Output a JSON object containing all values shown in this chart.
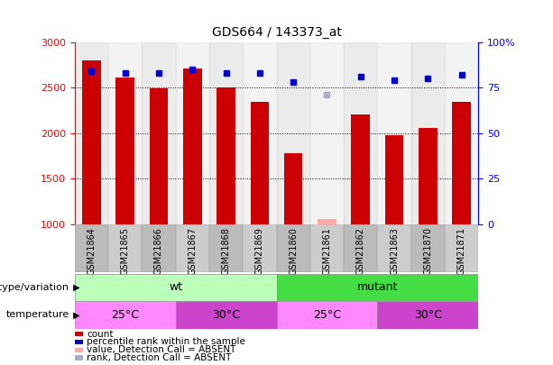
{
  "title": "GDS664 / 143373_at",
  "samples": [
    "GSM21864",
    "GSM21865",
    "GSM21866",
    "GSM21867",
    "GSM21868",
    "GSM21869",
    "GSM21860",
    "GSM21861",
    "GSM21862",
    "GSM21863",
    "GSM21870",
    "GSM21871"
  ],
  "counts": [
    2800,
    2610,
    2490,
    2710,
    2500,
    2340,
    1780,
    null,
    2210,
    1980,
    2060,
    2340
  ],
  "percentile_ranks": [
    84,
    83,
    83,
    85,
    83,
    83,
    78,
    null,
    81,
    79,
    80,
    82
  ],
  "absent_value": [
    null,
    null,
    null,
    null,
    null,
    null,
    null,
    1060,
    null,
    null,
    null,
    null
  ],
  "absent_rank": [
    null,
    null,
    null,
    null,
    null,
    null,
    null,
    2420,
    null,
    null,
    null,
    null
  ],
  "ylim_left": [
    1000,
    3000
  ],
  "ylim_right": [
    0,
    100
  ],
  "bar_color": "#cc0000",
  "blue_dot_color": "#0000cc",
  "absent_value_color": "#ffaaaa",
  "absent_rank_color": "#aaaacc",
  "grid_dotted_values": [
    1500,
    2000,
    2500
  ],
  "wt_color": "#bbffbb",
  "mutant_color": "#44dd44",
  "temp25_color": "#ff88ff",
  "temp30_color": "#cc44cc",
  "genotype_label": "genotype/variation",
  "temperature_label": "temperature",
  "legend_items": [
    {
      "label": "count",
      "color": "#cc0000"
    },
    {
      "label": "percentile rank within the sample",
      "color": "#0000cc"
    },
    {
      "label": "value, Detection Call = ABSENT",
      "color": "#ffaaaa"
    },
    {
      "label": "rank, Detection Call = ABSENT",
      "color": "#aaaacc"
    }
  ]
}
